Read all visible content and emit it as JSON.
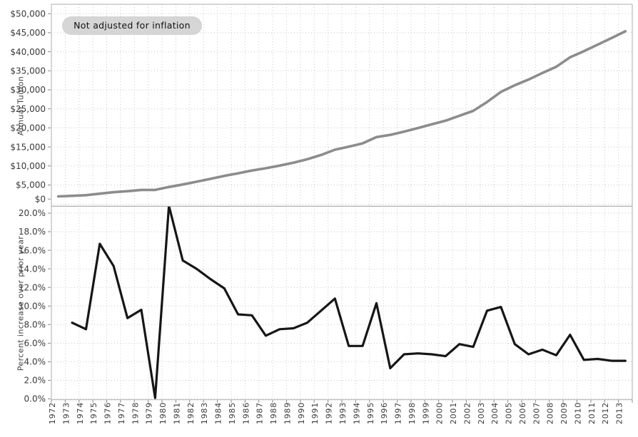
{
  "annotation": {
    "label": "Not adjusted for inflation",
    "bg_color": "#d5d5d5",
    "text_color": "#111111"
  },
  "colors": {
    "background": "#ffffff",
    "grid": "#c9c9c9",
    "panel_border": "#adadad",
    "tick": "#8a8a8a",
    "tick_label": "#3a3a3a",
    "axis_title": "#414141",
    "tuition_line": "#8c8c8c",
    "percent_line": "#161616"
  },
  "x_axis": {
    "tick_labels": [
      "1972",
      "1973",
      "1974",
      "1975",
      "1976",
      "1977",
      "1978",
      "1979",
      "1980",
      "1981",
      "1982",
      "1983",
      "1984",
      "1985",
      "1986",
      "1987",
      "1988",
      "1989",
      "1990",
      "1991",
      "1992",
      "1993",
      "1994",
      "1995",
      "1996",
      "1997",
      "1998",
      "1999",
      "2000",
      "2001",
      "2002",
      "2003",
      "2004",
      "2005",
      "2006",
      "2007",
      "2008",
      "2009",
      "2010",
      "2011",
      "2012",
      "2013"
    ],
    "range": [
      1972,
      2014
    ]
  },
  "chart_data": [
    {
      "type": "line",
      "panel": "top",
      "series_name": "Annual Tuition",
      "ylabel": "Annual Tuition",
      "xlabel": "",
      "grid": true,
      "legend": "none",
      "line_color": "#8c8c8c",
      "ylim": [
        0,
        52470
      ],
      "ytick_values": [
        0,
        5000,
        10000,
        15000,
        20000,
        25000,
        30000,
        35000,
        40000,
        45000,
        50000
      ],
      "ytick_labels": [
        "$0",
        "$5,000",
        "$10,000",
        "$15,000",
        "$20,000",
        "$25,000",
        "$30,000",
        "$35,000",
        "$40,000",
        "$45,000",
        "$50,000"
      ],
      "x": [
        1972,
        1973,
        1974,
        1975,
        1976,
        1977,
        1978,
        1979,
        1980,
        1981,
        1982,
        1983,
        1984,
        1985,
        1986,
        1987,
        1988,
        1989,
        1990,
        1991,
        1992,
        1993,
        1994,
        1995,
        1996,
        1997,
        1998,
        1999,
        2000,
        2001,
        2002,
        2003,
        2004,
        2005,
        2006,
        2007,
        2008,
        2009,
        2010,
        2011,
        2012,
        2013
      ],
      "values": [
        2000,
        2160,
        2330,
        2720,
        3100,
        3370,
        3700,
        3700,
        4470,
        5140,
        5860,
        6610,
        7400,
        8070,
        8800,
        9400,
        10100,
        10870,
        11760,
        12880,
        14270,
        15080,
        15940,
        17580,
        18160,
        19030,
        19970,
        20930,
        21890,
        23180,
        24480,
        26800,
        29460,
        31190,
        32690,
        34420,
        36040,
        38530,
        40150,
        41870,
        43590,
        45380
      ]
    },
    {
      "type": "line",
      "panel": "bottom",
      "series_name": "Percent increase over prior year",
      "ylabel": "Percent increase over prior year",
      "xlabel": "",
      "grid": true,
      "legend": "none",
      "line_color": "#161616",
      "ylim": [
        0,
        20.77
      ],
      "ytick_values": [
        0,
        2,
        4,
        6,
        8,
        10,
        12,
        14,
        16,
        18,
        20
      ],
      "ytick_labels": [
        "0.0%",
        "2.0%",
        "4.0%",
        "6.0%",
        "8.0%",
        "10.0%",
        "12.0%",
        "14.0%",
        "16.0%",
        "18.0%",
        "20.0%"
      ],
      "x": [
        1973,
        1974,
        1975,
        1976,
        1977,
        1978,
        1979,
        1980,
        1981,
        1982,
        1983,
        1984,
        1985,
        1986,
        1987,
        1988,
        1989,
        1990,
        1991,
        1992,
        1993,
        1994,
        1995,
        1996,
        1997,
        1998,
        1999,
        2000,
        2001,
        2002,
        2003,
        2004,
        2005,
        2006,
        2007,
        2008,
        2009,
        2010,
        2011,
        2012,
        2013
      ],
      "values": [
        8.2,
        7.5,
        16.7,
        14.3,
        8.7,
        9.6,
        0.1,
        20.8,
        14.9,
        14.0,
        12.9,
        11.9,
        9.1,
        9.0,
        6.8,
        7.5,
        7.6,
        8.2,
        9.5,
        10.8,
        5.7,
        5.7,
        10.3,
        3.3,
        4.8,
        4.9,
        4.8,
        4.6,
        5.9,
        5.6,
        9.5,
        9.9,
        5.9,
        4.8,
        5.3,
        4.7,
        6.9,
        4.2,
        4.3,
        4.1,
        4.1
      ]
    }
  ]
}
